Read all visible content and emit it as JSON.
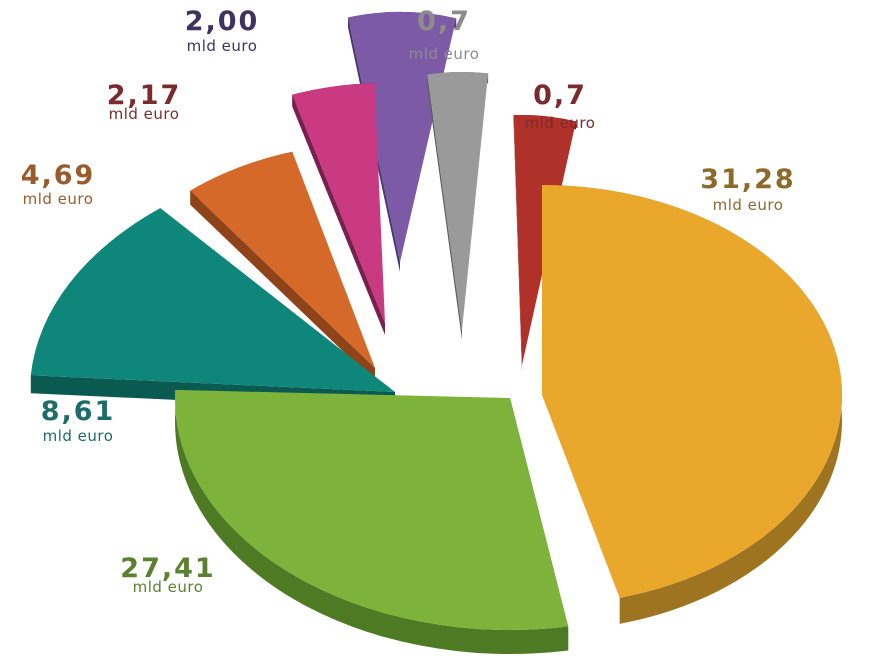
{
  "chart_data": {
    "type": "pie",
    "unit": "mld euro",
    "slices": [
      {
        "value_label": "31,28",
        "value": 31.28,
        "unit_label": "mld euro",
        "color": "#E9A82C",
        "side": "#9E7420",
        "label_color": "#8B6A2C"
      },
      {
        "value_label": "27,41",
        "value": 27.41,
        "unit_label": "mld euro",
        "color": "#7DB33A",
        "side": "#4F7A24",
        "label_color": "#5A8030"
      },
      {
        "value_label": "8,61",
        "value": 8.61,
        "unit_label": "mld euro",
        "color": "#0E877A",
        "side": "#0A5A52",
        "label_color": "#1D6C68"
      },
      {
        "value_label": "4,69",
        "value": 4.69,
        "unit_label": "mld euro",
        "color": "#D4692A",
        "side": "#8E4418",
        "label_color": "#9A5B2C"
      },
      {
        "value_label": "2,17",
        "value": 2.17,
        "unit_label": "mld euro",
        "color": "#C93A82",
        "side": "#7A2050",
        "label_color": "#7A2B2E"
      },
      {
        "value_label": "2,00",
        "value": 2.0,
        "unit_label": "mld euro",
        "color": "#7C5AA6",
        "side": "#4A3670",
        "label_color": "#3D3360"
      },
      {
        "value_label": "0,7",
        "value": 0.7,
        "unit_label": "mld euro",
        "color": "#9A9A9A",
        "side": "#5E5E5E",
        "label_color": "#8C8C8C"
      },
      {
        "value_label": "0,7",
        "value": 0.7,
        "unit_label": "mld euro",
        "color": "#B0302A",
        "side": "#6A1C1A",
        "label_color": "#7A2B2E"
      }
    ]
  }
}
